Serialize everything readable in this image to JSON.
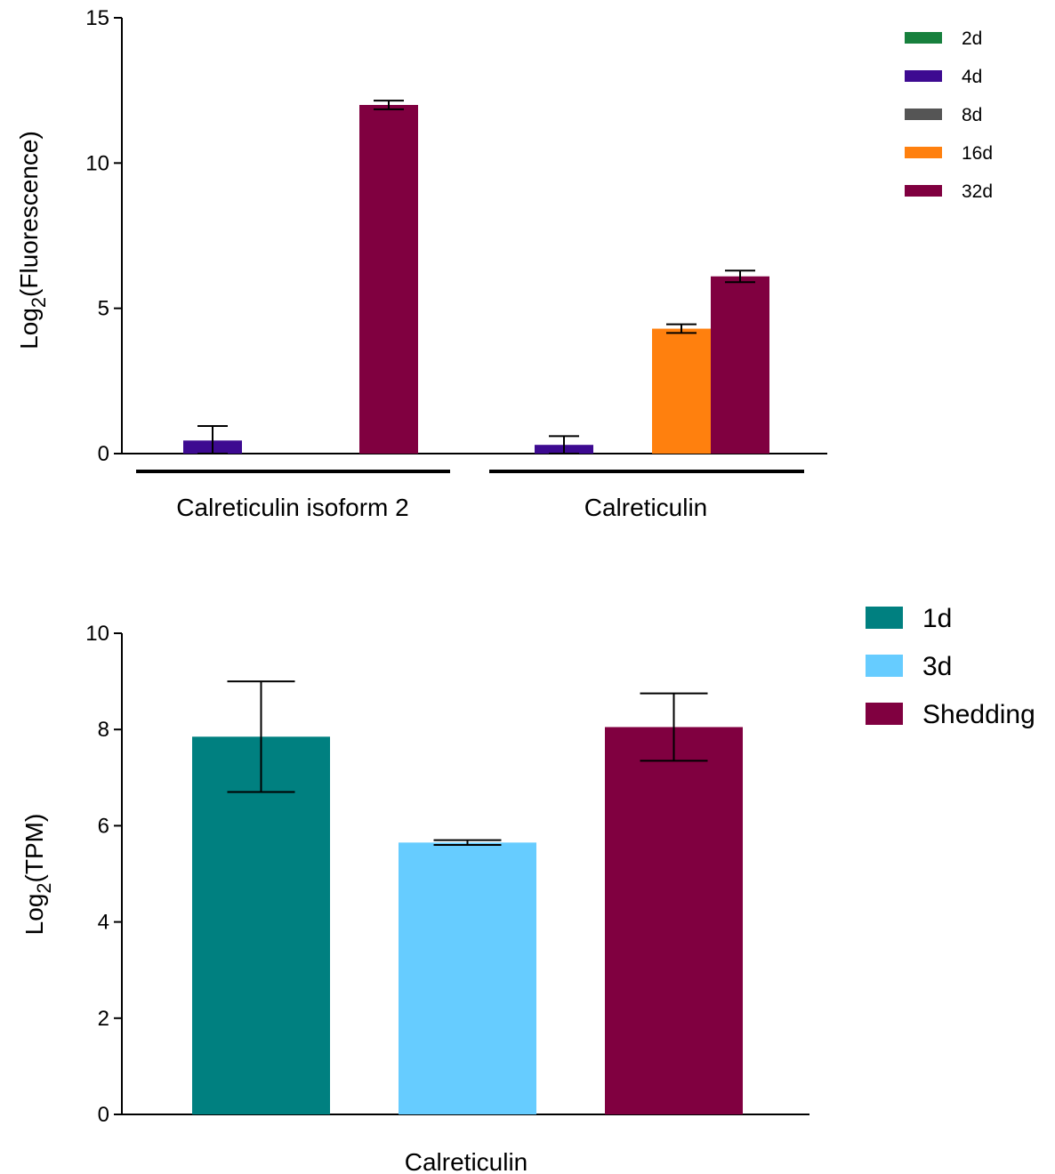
{
  "chart_data": [
    {
      "type": "bar",
      "ylabel_main": "Log",
      "ylabel_sub": "2",
      "ylabel_rest": "(Fluorescence)",
      "ylim": [
        0,
        15
      ],
      "yticks": [
        "0",
        "5",
        "10",
        "15"
      ],
      "groups": [
        "Calreticulin isoform 2",
        "Calreticulin"
      ],
      "series": [
        {
          "name": "2d",
          "color": "#17803d",
          "values": [
            0,
            0
          ],
          "errors": [
            0,
            0
          ]
        },
        {
          "name": "4d",
          "color": "#3d0a91",
          "values": [
            0.45,
            0.3
          ],
          "errors": [
            0.5,
            0.3
          ]
        },
        {
          "name": "8d",
          "color": "#555555",
          "values": [
            0,
            0
          ],
          "errors": [
            0,
            0
          ]
        },
        {
          "name": "16d",
          "color": "#ff800e",
          "values": [
            0,
            4.3
          ],
          "errors": [
            0,
            0.15
          ]
        },
        {
          "name": "32d",
          "color": "#800040",
          "values": [
            12.0,
            6.1
          ],
          "errors": [
            0.15,
            0.2
          ]
        }
      ],
      "legend_position": "top-right"
    },
    {
      "type": "bar",
      "ylabel_main": "Log",
      "ylabel_sub": "2",
      "ylabel_rest": "(TPM)",
      "ylim": [
        0,
        10
      ],
      "yticks": [
        "0",
        "2",
        "4",
        "6",
        "8",
        "10"
      ],
      "xlabel": "Calreticulin",
      "series": [
        {
          "name": "1d",
          "color": "#008080",
          "value": 7.85,
          "error": 1.15
        },
        {
          "name": "3d",
          "color": "#66ccff",
          "value": 5.65,
          "error": 0.05
        },
        {
          "name": "Shedding",
          "color": "#800040",
          "value": 8.05,
          "error": 0.7
        }
      ],
      "legend_position": "top-right"
    }
  ]
}
